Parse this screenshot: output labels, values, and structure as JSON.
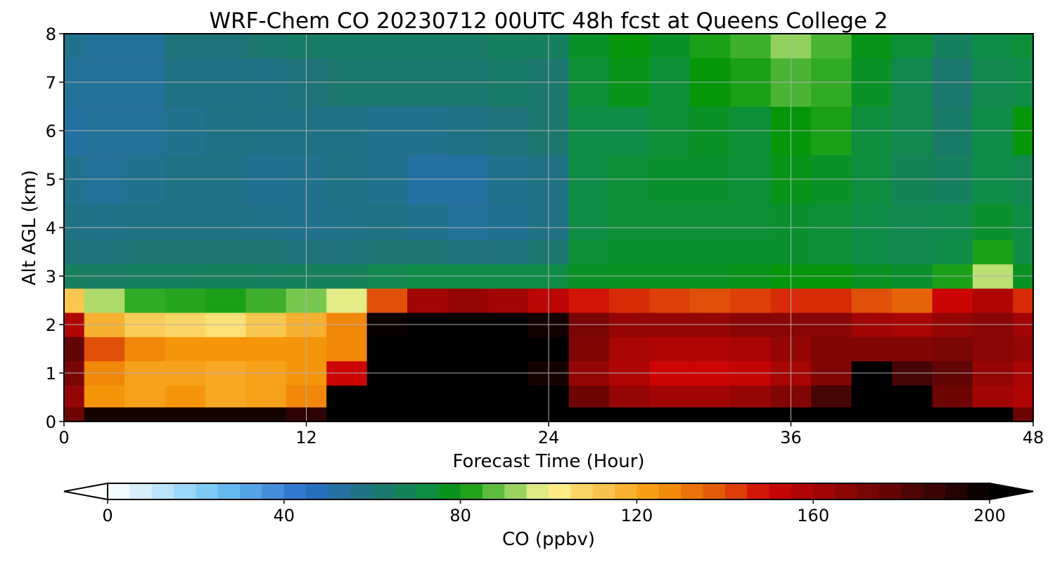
{
  "chart_data": {
    "type": "heatmap",
    "title": "WRF-Chem CO  20230712 00UTC 48h fcst at Queens College 2",
    "xlabel": "Forecast Time (Hour)",
    "ylabel": "Alt AGL (km)",
    "xlim": [
      0,
      48
    ],
    "ylim": [
      0,
      8
    ],
    "x_ticks": [
      "0",
      "12",
      "24",
      "36",
      "48"
    ],
    "y_ticks": [
      "0",
      "1",
      "2",
      "3",
      "4",
      "5",
      "6",
      "7",
      "8"
    ],
    "grid": true,
    "x_hours": [
      0,
      2,
      4,
      6,
      8,
      10,
      12,
      14,
      16,
      18,
      20,
      22,
      24,
      26,
      28,
      30,
      32,
      34,
      36,
      38,
      40,
      42,
      44,
      46,
      48
    ],
    "altitudes_km": [
      0.1,
      0.5,
      1.0,
      1.5,
      2.0,
      2.5,
      3.0,
      3.5,
      4.0,
      5.0,
      6.0,
      7.0,
      8.0
    ],
    "co_ppbv": [
      [
        175,
        195,
        195,
        195,
        195,
        195,
        190,
        200,
        200,
        200,
        200,
        200,
        200,
        200,
        200,
        200,
        200,
        200,
        200,
        200,
        200,
        200,
        200,
        200,
        175
      ],
      [
        165,
        125,
        122,
        125,
        120,
        122,
        128,
        200,
        200,
        200,
        200,
        200,
        200,
        175,
        165,
        162,
        162,
        165,
        170,
        185,
        200,
        200,
        175,
        162,
        158
      ],
      [
        172,
        128,
        122,
        122,
        120,
        122,
        125,
        150,
        200,
        200,
        200,
        200,
        195,
        165,
        158,
        150,
        150,
        152,
        160,
        170,
        200,
        185,
        178,
        165,
        160
      ],
      [
        178,
        140,
        128,
        125,
        125,
        125,
        125,
        128,
        200,
        200,
        200,
        200,
        200,
        170,
        160,
        158,
        158,
        160,
        165,
        170,
        170,
        170,
        172,
        168,
        165
      ],
      [
        158,
        118,
        110,
        108,
        105,
        112,
        118,
        128,
        198,
        200,
        200,
        200,
        196,
        172,
        165,
        165,
        165,
        168,
        168,
        168,
        162,
        160,
        165,
        168,
        162
      ],
      [
        112,
        94,
        84,
        83,
        82,
        85,
        90,
        98,
        140,
        162,
        165,
        162,
        155,
        148,
        145,
        142,
        140,
        142,
        145,
        145,
        140,
        136,
        150,
        158,
        145
      ],
      [
        66,
        65,
        66,
        66,
        67,
        66,
        67,
        67,
        70,
        72,
        72,
        72,
        72,
        76,
        77,
        77,
        77,
        78,
        80,
        80,
        77,
        75,
        82,
        95,
        77
      ],
      [
        60,
        60,
        61,
        61,
        61,
        61,
        60,
        60,
        61,
        61,
        60,
        60,
        62,
        74,
        75,
        75,
        75,
        75,
        75,
        74,
        72,
        70,
        72,
        82,
        72
      ],
      [
        58,
        57,
        58,
        58,
        58,
        57,
        56,
        57,
        58,
        56,
        54,
        55,
        58,
        72,
        74,
        74,
        74,
        74,
        75,
        74,
        72,
        70,
        71,
        75,
        72
      ],
      [
        56,
        54,
        56,
        58,
        58,
        55,
        56,
        58,
        56,
        52,
        52,
        56,
        58,
        72,
        74,
        75,
        75,
        74,
        78,
        76,
        73,
        68,
        66,
        72,
        70
      ],
      [
        52,
        54,
        54,
        56,
        58,
        58,
        58,
        58,
        56,
        56,
        58,
        60,
        62,
        72,
        72,
        74,
        76,
        74,
        80,
        82,
        73,
        70,
        64,
        72,
        80
      ],
      [
        54,
        54,
        54,
        58,
        58,
        58,
        60,
        62,
        62,
        62,
        62,
        64,
        62,
        74,
        78,
        74,
        80,
        82,
        86,
        84,
        76,
        70,
        62,
        70,
        72
      ],
      [
        56,
        54,
        54,
        60,
        60,
        62,
        64,
        64,
        64,
        64,
        64,
        66,
        66,
        76,
        80,
        76,
        82,
        85,
        92,
        86,
        78,
        74,
        66,
        72,
        74
      ]
    ],
    "colorbar": {
      "label": "CO  (ppbv)",
      "min": 0,
      "max": 200,
      "ticks": [
        "0",
        "40",
        "80",
        "120",
        "160",
        "200"
      ],
      "extend": "both"
    }
  }
}
